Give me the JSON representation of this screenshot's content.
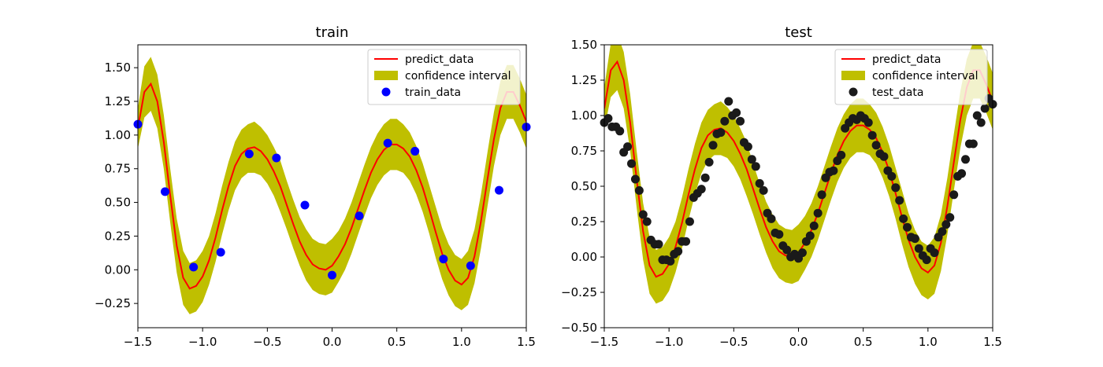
{
  "chart_data": [
    {
      "type": "line",
      "title": "train",
      "xlabel": "",
      "ylabel": "",
      "xlim": [
        -1.5,
        1.5
      ],
      "ylim": [
        -0.43,
        1.67
      ],
      "x_ticks": [
        "−1.5",
        "−1.0",
        "−0.5",
        "0.0",
        "0.5",
        "1.0",
        "1.5"
      ],
      "x_tick_values": [
        -1.5,
        -1.0,
        -0.5,
        0.0,
        0.5,
        1.0,
        1.5
      ],
      "y_ticks": [
        "−0.25",
        "0.00",
        "0.25",
        "0.50",
        "0.75",
        "1.00",
        "1.25",
        "1.50"
      ],
      "y_tick_values": [
        -0.25,
        0.0,
        0.25,
        0.5,
        0.75,
        1.0,
        1.25,
        1.5
      ],
      "legend_position": "upper-right",
      "legend": [
        {
          "label": "predict_data",
          "kind": "line",
          "color": "#ff0000"
        },
        {
          "label": "confidence interval",
          "kind": "band",
          "color": "#bfbf00"
        },
        {
          "label": "train_data",
          "kind": "point",
          "color": "#0000ff"
        }
      ],
      "predict": {
        "x": [
          -1.5,
          -1.45,
          -1.4,
          -1.35,
          -1.3,
          -1.25,
          -1.2,
          -1.15,
          -1.1,
          -1.05,
          -1.0,
          -0.95,
          -0.9,
          -0.85,
          -0.8,
          -0.75,
          -0.7,
          -0.65,
          -0.6,
          -0.55,
          -0.5,
          -0.45,
          -0.4,
          -0.35,
          -0.3,
          -0.25,
          -0.2,
          -0.15,
          -0.1,
          -0.05,
          0.0,
          0.05,
          0.1,
          0.15,
          0.2,
          0.25,
          0.3,
          0.35,
          0.4,
          0.45,
          0.5,
          0.55,
          0.6,
          0.65,
          0.7,
          0.75,
          0.8,
          0.85,
          0.9,
          0.95,
          1.0,
          1.05,
          1.1,
          1.15,
          1.2,
          1.25,
          1.3,
          1.35,
          1.4,
          1.45,
          1.5
        ],
        "y": [
          1.05,
          1.32,
          1.38,
          1.25,
          0.95,
          0.55,
          0.18,
          -0.06,
          -0.14,
          -0.12,
          -0.05,
          0.07,
          0.24,
          0.44,
          0.62,
          0.77,
          0.86,
          0.9,
          0.91,
          0.88,
          0.82,
          0.73,
          0.62,
          0.48,
          0.34,
          0.21,
          0.11,
          0.04,
          0.01,
          0.0,
          0.03,
          0.1,
          0.19,
          0.31,
          0.45,
          0.59,
          0.72,
          0.82,
          0.89,
          0.93,
          0.93,
          0.9,
          0.84,
          0.74,
          0.61,
          0.45,
          0.28,
          0.12,
          0.0,
          -0.08,
          -0.11,
          -0.06,
          0.1,
          0.36,
          0.67,
          0.97,
          1.2,
          1.32,
          1.32,
          1.22,
          1.1
        ],
        "lower": [
          0.9,
          1.13,
          1.18,
          1.05,
          0.75,
          0.35,
          -0.02,
          -0.26,
          -0.33,
          -0.31,
          -0.24,
          -0.11,
          0.06,
          0.26,
          0.44,
          0.59,
          0.68,
          0.72,
          0.72,
          0.7,
          0.64,
          0.55,
          0.43,
          0.3,
          0.16,
          0.03,
          -0.08,
          -0.15,
          -0.18,
          -0.19,
          -0.17,
          -0.09,
          0.0,
          0.12,
          0.26,
          0.4,
          0.53,
          0.63,
          0.7,
          0.74,
          0.74,
          0.72,
          0.66,
          0.56,
          0.43,
          0.27,
          0.09,
          -0.07,
          -0.19,
          -0.27,
          -0.3,
          -0.26,
          -0.1,
          0.16,
          0.47,
          0.77,
          1.0,
          1.12,
          1.12,
          1.02,
          0.9
        ],
        "upper": [
          1.2,
          1.51,
          1.58,
          1.45,
          1.15,
          0.75,
          0.38,
          0.14,
          0.05,
          0.07,
          0.14,
          0.25,
          0.42,
          0.62,
          0.8,
          0.95,
          1.04,
          1.08,
          1.1,
          1.06,
          1.0,
          0.91,
          0.81,
          0.66,
          0.52,
          0.39,
          0.3,
          0.23,
          0.2,
          0.19,
          0.23,
          0.29,
          0.38,
          0.5,
          0.64,
          0.78,
          0.91,
          1.01,
          1.08,
          1.12,
          1.12,
          1.08,
          1.02,
          0.92,
          0.79,
          0.63,
          0.47,
          0.31,
          0.19,
          0.11,
          0.08,
          0.14,
          0.3,
          0.56,
          0.87,
          1.17,
          1.4,
          1.52,
          1.52,
          1.42,
          1.3
        ]
      },
      "points": {
        "name": "train_data",
        "x": [
          -1.5,
          -1.29,
          -1.07,
          -0.86,
          -0.64,
          -0.43,
          -0.21,
          0.0,
          0.21,
          0.43,
          0.64,
          0.86,
          1.07,
          1.29,
          1.5
        ],
        "y": [
          1.08,
          0.58,
          0.02,
          0.13,
          0.86,
          0.83,
          0.48,
          -0.04,
          0.4,
          0.94,
          0.88,
          0.08,
          0.03,
          0.59,
          1.06
        ]
      }
    },
    {
      "type": "line",
      "title": "test",
      "xlabel": "",
      "ylabel": "",
      "xlim": [
        -1.5,
        1.5
      ],
      "ylim": [
        -0.5,
        1.5
      ],
      "x_ticks": [
        "−1.5",
        "−1.0",
        "−0.5",
        "0.0",
        "0.5",
        "1.0",
        "1.5"
      ],
      "x_tick_values": [
        -1.5,
        -1.0,
        -0.5,
        0.0,
        0.5,
        1.0,
        1.5
      ],
      "y_ticks": [
        "−0.50",
        "−0.25",
        "0.00",
        "0.25",
        "0.50",
        "0.75",
        "1.00",
        "1.25",
        "1.50"
      ],
      "y_tick_values": [
        -0.5,
        -0.25,
        0.0,
        0.25,
        0.5,
        0.75,
        1.0,
        1.25,
        1.5
      ],
      "legend_position": "upper-right",
      "legend": [
        {
          "label": "predict_data",
          "kind": "line",
          "color": "#ff0000"
        },
        {
          "label": "confidence interval",
          "kind": "band",
          "color": "#bfbf00"
        },
        {
          "label": "test_data",
          "kind": "point",
          "color": "#1a1a1a"
        }
      ],
      "predict": {
        "x": [
          -1.5,
          -1.45,
          -1.4,
          -1.35,
          -1.3,
          -1.25,
          -1.2,
          -1.15,
          -1.1,
          -1.05,
          -1.0,
          -0.95,
          -0.9,
          -0.85,
          -0.8,
          -0.75,
          -0.7,
          -0.65,
          -0.6,
          -0.55,
          -0.5,
          -0.45,
          -0.4,
          -0.35,
          -0.3,
          -0.25,
          -0.2,
          -0.15,
          -0.1,
          -0.05,
          0.0,
          0.05,
          0.1,
          0.15,
          0.2,
          0.25,
          0.3,
          0.35,
          0.4,
          0.45,
          0.5,
          0.55,
          0.6,
          0.65,
          0.7,
          0.75,
          0.8,
          0.85,
          0.9,
          0.95,
          1.0,
          1.05,
          1.1,
          1.15,
          1.2,
          1.25,
          1.3,
          1.35,
          1.4,
          1.45,
          1.5
        ],
        "y": [
          1.05,
          1.32,
          1.38,
          1.25,
          0.95,
          0.55,
          0.18,
          -0.06,
          -0.14,
          -0.12,
          -0.05,
          0.07,
          0.24,
          0.44,
          0.62,
          0.77,
          0.86,
          0.9,
          0.91,
          0.88,
          0.82,
          0.73,
          0.62,
          0.48,
          0.34,
          0.21,
          0.11,
          0.04,
          0.01,
          0.0,
          0.03,
          0.1,
          0.19,
          0.31,
          0.45,
          0.59,
          0.72,
          0.82,
          0.89,
          0.93,
          0.93,
          0.9,
          0.84,
          0.74,
          0.61,
          0.45,
          0.28,
          0.12,
          0.0,
          -0.08,
          -0.11,
          -0.06,
          0.1,
          0.36,
          0.67,
          0.97,
          1.2,
          1.32,
          1.32,
          1.22,
          1.1
        ],
        "lower": [
          0.9,
          1.13,
          1.18,
          1.05,
          0.75,
          0.35,
          -0.02,
          -0.26,
          -0.33,
          -0.31,
          -0.24,
          -0.11,
          0.06,
          0.26,
          0.44,
          0.59,
          0.68,
          0.72,
          0.72,
          0.7,
          0.64,
          0.55,
          0.43,
          0.3,
          0.16,
          0.03,
          -0.08,
          -0.15,
          -0.18,
          -0.19,
          -0.17,
          -0.09,
          0.0,
          0.12,
          0.26,
          0.4,
          0.53,
          0.63,
          0.7,
          0.74,
          0.74,
          0.72,
          0.66,
          0.56,
          0.43,
          0.27,
          0.09,
          -0.07,
          -0.19,
          -0.27,
          -0.3,
          -0.26,
          -0.1,
          0.16,
          0.47,
          0.77,
          1.0,
          1.12,
          1.12,
          1.02,
          0.9
        ],
        "upper": [
          1.2,
          1.51,
          1.58,
          1.45,
          1.15,
          0.75,
          0.38,
          0.14,
          0.05,
          0.07,
          0.14,
          0.25,
          0.42,
          0.62,
          0.8,
          0.95,
          1.04,
          1.08,
          1.1,
          1.06,
          1.0,
          0.91,
          0.81,
          0.66,
          0.52,
          0.39,
          0.3,
          0.23,
          0.2,
          0.19,
          0.23,
          0.29,
          0.38,
          0.5,
          0.64,
          0.78,
          0.91,
          1.01,
          1.08,
          1.12,
          1.12,
          1.08,
          1.02,
          0.92,
          0.79,
          0.63,
          0.47,
          0.31,
          0.19,
          0.11,
          0.08,
          0.14,
          0.3,
          0.56,
          0.87,
          1.17,
          1.4,
          1.52,
          1.52,
          1.42,
          1.3
        ]
      },
      "points": {
        "name": "test_data",
        "x": [
          -1.5,
          -1.47,
          -1.44,
          -1.41,
          -1.38,
          -1.35,
          -1.32,
          -1.29,
          -1.26,
          -1.23,
          -1.2,
          -1.17,
          -1.14,
          -1.11,
          -1.08,
          -1.05,
          -1.02,
          -0.99,
          -0.96,
          -0.93,
          -0.9,
          -0.87,
          -0.84,
          -0.81,
          -0.78,
          -0.75,
          -0.72,
          -0.69,
          -0.66,
          -0.63,
          -0.6,
          -0.57,
          -0.54,
          -0.51,
          -0.48,
          -0.45,
          -0.42,
          -0.39,
          -0.36,
          -0.33,
          -0.3,
          -0.27,
          -0.24,
          -0.21,
          -0.18,
          -0.15,
          -0.12,
          -0.09,
          -0.06,
          -0.03,
          0.0,
          0.03,
          0.06,
          0.09,
          0.12,
          0.15,
          0.18,
          0.21,
          0.24,
          0.27,
          0.3,
          0.33,
          0.36,
          0.39,
          0.42,
          0.45,
          0.48,
          0.51,
          0.54,
          0.57,
          0.6,
          0.63,
          0.66,
          0.69,
          0.72,
          0.75,
          0.78,
          0.81,
          0.84,
          0.87,
          0.9,
          0.93,
          0.96,
          0.99,
          1.02,
          1.05,
          1.08,
          1.11,
          1.14,
          1.17,
          1.2,
          1.23,
          1.26,
          1.29,
          1.32,
          1.35,
          1.38,
          1.41,
          1.44,
          1.47,
          1.5
        ],
        "y": [
          0.95,
          0.98,
          0.92,
          0.92,
          0.89,
          0.74,
          0.78,
          0.66,
          0.55,
          0.47,
          0.3,
          0.25,
          0.12,
          0.09,
          0.09,
          -0.02,
          -0.02,
          -0.03,
          0.02,
          0.04,
          0.11,
          0.11,
          0.25,
          0.42,
          0.45,
          0.48,
          0.56,
          0.67,
          0.79,
          0.87,
          0.88,
          0.96,
          1.1,
          1.0,
          1.02,
          0.96,
          0.81,
          0.78,
          0.69,
          0.64,
          0.52,
          0.47,
          0.31,
          0.27,
          0.17,
          0.16,
          0.08,
          0.05,
          0.0,
          0.02,
          -0.01,
          0.03,
          0.11,
          0.15,
          0.22,
          0.31,
          0.44,
          0.56,
          0.6,
          0.61,
          0.68,
          0.72,
          0.91,
          0.95,
          0.98,
          0.97,
          1.0,
          0.98,
          0.95,
          0.86,
          0.79,
          0.73,
          0.71,
          0.61,
          0.57,
          0.49,
          0.4,
          0.27,
          0.21,
          0.14,
          0.13,
          0.06,
          0.01,
          -0.02,
          0.06,
          0.03,
          0.14,
          0.18,
          0.23,
          0.28,
          0.44,
          0.57,
          0.59,
          0.69,
          0.8,
          0.8,
          1.0,
          0.95,
          1.05,
          1.12,
          1.08
        ]
      }
    }
  ]
}
